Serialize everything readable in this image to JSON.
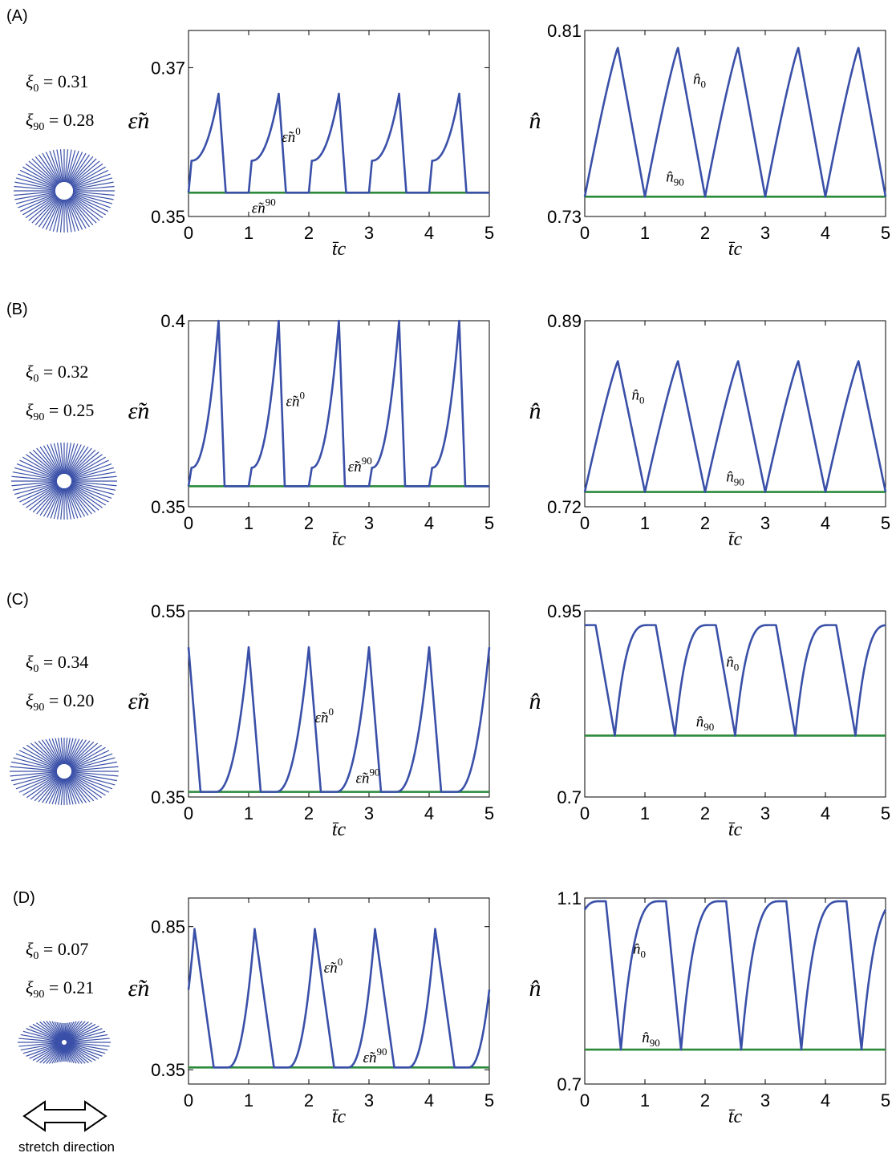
{
  "figure": {
    "stretch_caption": "stretch direction"
  },
  "chart_data": [
    {
      "type": "line",
      "panel": "(A)",
      "params": {
        "xi0": "0.31",
        "xi90": "0.28"
      },
      "left": {
        "ylabel": "ε̃n",
        "xlabel": "t̄c",
        "ylim": [
          0.35,
          0.375
        ],
        "yticks": [
          0.35,
          0.37
        ],
        "ytick_labels": [
          "0.35",
          "0.37"
        ],
        "xlim": [
          0,
          5
        ],
        "xticks": [
          0,
          1,
          2,
          3,
          4,
          5
        ],
        "shape": "rise",
        "peak_t": 0.5,
        "fall_end_t": 0.62,
        "peak": 0.3665,
        "base": 0.3532,
        "rise_to": 0.3575,
        "series": [
          {
            "name": "ε̃n0",
            "color": "#3a50a8"
          },
          {
            "name": "ε̃n90",
            "value": 0.3532,
            "color": "#2a8a3a"
          }
        ],
        "ann0": "ε̃n",
        "ann0_sup": "0",
        "ann90": "ε̃n",
        "ann90_sup": "90",
        "ann0_at": [
          1.55,
          0.36
        ],
        "ann90_at": [
          1.05,
          0.3505
        ]
      },
      "right": {
        "ylabel": "n̂",
        "xlabel": "t̄c",
        "ylim": [
          0.73,
          0.81
        ],
        "yticks": [
          0.73,
          0.81
        ],
        "ytick_labels": [
          "0.73",
          "0.81"
        ],
        "xlim": [
          0,
          5
        ],
        "xticks": [
          0,
          1,
          2,
          3,
          4,
          5
        ],
        "shape": "triangle",
        "peak_t": 0.55,
        "peak": 0.8025,
        "base": 0.7385,
        "series": [
          {
            "name": "n̂0",
            "color": "#3a50a8"
          },
          {
            "name": "n̂90",
            "value": 0.7385,
            "color": "#2a8a3a"
          }
        ],
        "ann0": "n̂",
        "ann0_sub": "0",
        "ann90": "n̂",
        "ann90_sub": "90",
        "ann0_at": [
          1.8,
          0.787
        ],
        "ann90_at": [
          1.35,
          0.745
        ]
      }
    },
    {
      "type": "line",
      "panel": "(B)",
      "params": {
        "xi0": "0.32",
        "xi90": "0.25"
      },
      "left": {
        "ylabel": "ε̃n",
        "xlabel": "t̄c",
        "ylim": [
          0.35,
          0.4
        ],
        "yticks": [
          0.35,
          0.4
        ],
        "ytick_labels": [
          "0.35",
          "0.4"
        ],
        "xlim": [
          0,
          5
        ],
        "xticks": [
          0,
          1,
          2,
          3,
          4,
          5
        ],
        "shape": "rise",
        "peak_t": 0.5,
        "fall_end_t": 0.6,
        "peak": 0.4,
        "base": 0.3555,
        "rise_to": 0.3605,
        "series": [
          {
            "name": "ε̃n0",
            "color": "#3a50a8"
          },
          {
            "name": "ε̃n90",
            "value": 0.3555,
            "color": "#2a8a3a"
          }
        ],
        "ann0": "ε̃n",
        "ann0_sup": "0",
        "ann90": "ε̃n",
        "ann90_sup": "90",
        "ann0_at": [
          1.62,
          0.377
        ],
        "ann90_at": [
          2.65,
          0.3595
        ]
      },
      "right": {
        "ylabel": "n̂",
        "xlabel": "t̄c",
        "ylim": [
          0.72,
          0.89
        ],
        "yticks": [
          0.72,
          0.89
        ],
        "ytick_labels": [
          "0.72",
          "0.89"
        ],
        "xlim": [
          0,
          5
        ],
        "xticks": [
          0,
          1,
          2,
          3,
          4,
          5
        ],
        "shape": "triangle",
        "peak_t": 0.55,
        "peak": 0.853,
        "base": 0.7335,
        "series": [
          {
            "name": "n̂0",
            "color": "#3a50a8"
          },
          {
            "name": "n̂90",
            "value": 0.7335,
            "color": "#2a8a3a"
          }
        ],
        "ann0": "n̂",
        "ann0_sub": "0",
        "ann90": "n̂",
        "ann90_sub": "90",
        "ann0_at": [
          0.78,
          0.818
        ],
        "ann90_at": [
          2.35,
          0.743
        ]
      }
    },
    {
      "type": "line",
      "panel": "(C)",
      "params": {
        "xi0": "0.34",
        "xi90": "0.20"
      },
      "left": {
        "ylabel": "ε̃n",
        "xlabel": "t̄c",
        "ylim": [
          0.35,
          0.55
        ],
        "yticks": [
          0.35,
          0.55
        ],
        "ytick_labels": [
          "0.35",
          "0.55"
        ],
        "xlim": [
          0,
          5
        ],
        "xticks": [
          0,
          1,
          2,
          3,
          4,
          5
        ],
        "shape": "spike",
        "peak_t": 1.0,
        "period": 1.0,
        "fall_dur": 0.2,
        "rise_dur": 0.55,
        "peak": 0.511,
        "base": 0.3555,
        "series": [
          {
            "name": "ε̃n0",
            "color": "#3a50a8"
          },
          {
            "name": "ε̃n90",
            "value": 0.3555,
            "color": "#2a8a3a"
          }
        ],
        "ann0": "ε̃n",
        "ann0_sup": "0",
        "ann90": "ε̃n",
        "ann90_sup": "90",
        "ann0_at": [
          2.1,
          0.43
        ],
        "ann90_at": [
          2.78,
          0.365
        ]
      },
      "right": {
        "ylabel": "n̂",
        "xlabel": "t̄c",
        "ylim": [
          0.7,
          0.95
        ],
        "yticks": [
          0.7,
          0.95
        ],
        "ytick_labels": [
          "0.7",
          "0.95"
        ],
        "xlim": [
          0,
          5
        ],
        "xticks": [
          0,
          1,
          2,
          3,
          4,
          5
        ],
        "shape": "notch",
        "notch_t": 0.5,
        "period": 1.0,
        "fall_dur": 0.32,
        "rec_dur": 0.55,
        "top": 0.931,
        "base": 0.7825,
        "series": [
          {
            "name": "n̂0",
            "color": "#3a50a8"
          },
          {
            "name": "n̂90",
            "value": 0.7825,
            "color": "#2a8a3a"
          }
        ],
        "ann0": "n̂",
        "ann0_sub": "0",
        "ann90": "n̂",
        "ann90_sub": "90",
        "ann0_at": [
          2.35,
          0.875
        ],
        "ann90_at": [
          1.85,
          0.795
        ]
      }
    },
    {
      "type": "line",
      "panel": "(D)",
      "params": {
        "xi0": "0.07",
        "xi90": "0.21"
      },
      "left": {
        "ylabel": "ε̃n",
        "xlabel": "t̄c",
        "ylim": [
          0.3,
          0.95
        ],
        "yticks": [
          0.35,
          0.85
        ],
        "ytick_labels": [
          "0.35",
          "0.85"
        ],
        "xlim": [
          0,
          5
        ],
        "xticks": [
          0,
          1,
          2,
          3,
          4,
          5
        ],
        "shape": "spike",
        "peak_t": 0.1,
        "period": 1.0,
        "fall_dur": 0.32,
        "rise_dur": 0.45,
        "peak": 0.842,
        "base": 0.358,
        "series": [
          {
            "name": "ε̃n0",
            "color": "#3a50a8"
          },
          {
            "name": "ε̃n90",
            "value": 0.358,
            "color": "#2a8a3a"
          }
        ],
        "ann0": "ε̃n",
        "ann0_sup": "0",
        "ann90": "ε̃n",
        "ann90_sup": "90",
        "ann0_at": [
          2.25,
          0.69
        ],
        "ann90_at": [
          2.9,
          0.375
        ]
      },
      "right": {
        "ylabel": "n̂",
        "xlabel": "t̄c",
        "ylim": [
          0.7,
          1.1
        ],
        "yticks": [
          0.7,
          1.1
        ],
        "ytick_labels": [
          "0.7",
          "1.1"
        ],
        "xlim": [
          0,
          5
        ],
        "xticks": [
          0,
          1,
          2,
          3,
          4,
          5
        ],
        "shape": "notch",
        "notch_t": 0.6,
        "period": 1.0,
        "fall_dur": 0.25,
        "rec_dur": 0.65,
        "top": 1.093,
        "base": 0.774,
        "series": [
          {
            "name": "n̂0",
            "color": "#3a50a8"
          },
          {
            "name": "n̂90",
            "value": 0.774,
            "color": "#2a8a3a"
          }
        ],
        "ann0": "n̂",
        "ann0_sub": "0",
        "ann90": "n̂",
        "ann90_sub": "90",
        "ann0_at": [
          0.8,
          0.98
        ],
        "ann90_at": [
          0.95,
          0.79
        ]
      }
    }
  ]
}
